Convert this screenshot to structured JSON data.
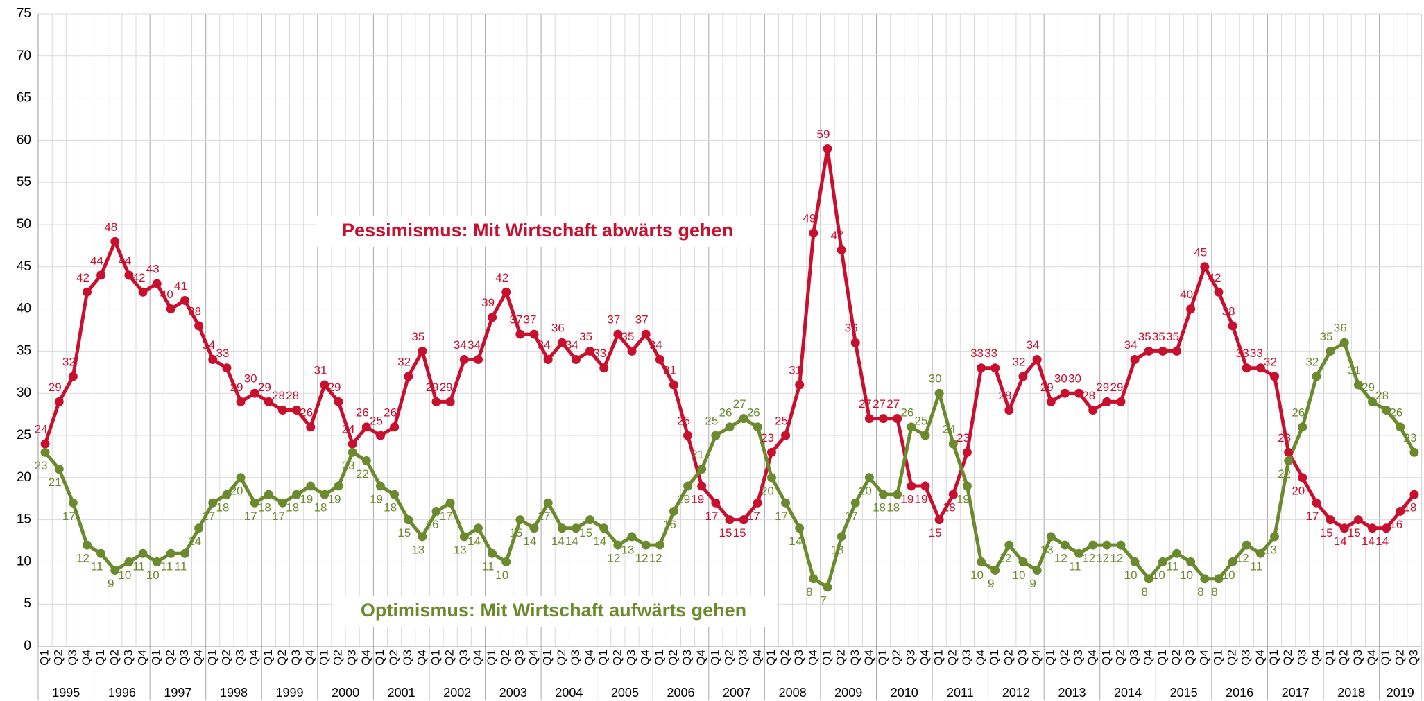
{
  "chart_data": {
    "type": "line",
    "categories": [
      "Q1",
      "Q2",
      "Q3",
      "Q4",
      "Q1",
      "Q2",
      "Q3",
      "Q4",
      "Q1",
      "Q2",
      "Q3",
      "Q4",
      "Q1",
      "Q2",
      "Q3",
      "Q4",
      "Q1",
      "Q2",
      "Q3",
      "Q4",
      "Q1",
      "Q2",
      "Q3",
      "Q4",
      "Q1",
      "Q2",
      "Q3",
      "Q4",
      "Q1",
      "Q2",
      "Q3",
      "Q4",
      "Q1",
      "Q2",
      "Q3",
      "Q4",
      "Q1",
      "Q2",
      "Q3",
      "Q4",
      "Q1",
      "Q2",
      "Q3",
      "Q4",
      "Q1",
      "Q2",
      "Q3",
      "Q4",
      "Q1",
      "Q2",
      "Q3",
      "Q4",
      "Q1",
      "Q2",
      "Q3",
      "Q4",
      "Q1",
      "Q2",
      "Q3",
      "Q4",
      "Q1",
      "Q2",
      "Q3",
      "Q4",
      "Q1",
      "Q2",
      "Q3",
      "Q4",
      "Q1",
      "Q2",
      "Q3",
      "Q4",
      "Q1",
      "Q2",
      "Q3",
      "Q4",
      "Q1",
      "Q2",
      "Q3",
      "Q4",
      "Q1",
      "Q2",
      "Q3",
      "Q4",
      "Q1",
      "Q2",
      "Q3",
      "Q4",
      "Q1",
      "Q2",
      "Q3",
      "Q4",
      "Q1",
      "Q2",
      "Q3",
      "Q4",
      "Q1",
      "Q2",
      "Q3"
    ],
    "years": [
      "1995",
      "1996",
      "1997",
      "1998",
      "1999",
      "2000",
      "2001",
      "2002",
      "2003",
      "2004",
      "2005",
      "2006",
      "2007",
      "2008",
      "2009",
      "2010",
      "2011",
      "2012",
      "2013",
      "2014",
      "2015",
      "2016",
      "2017",
      "2018",
      "2019"
    ],
    "series": [
      {
        "name": "Pessimismus: Mit Wirtschaft abwärts gehen",
        "color": "#c8102e",
        "values": [
          24,
          29,
          32,
          42,
          44,
          48,
          44,
          42,
          43,
          40,
          41,
          38,
          34,
          33,
          29,
          30,
          29,
          28,
          28,
          26,
          31,
          29,
          24,
          26,
          25,
          26,
          32,
          35,
          29,
          29,
          34,
          34,
          39,
          42,
          37,
          37,
          34,
          36,
          34,
          35,
          33,
          37,
          35,
          37,
          34,
          31,
          25,
          19,
          17,
          15,
          15,
          17,
          23,
          25,
          31,
          49,
          59,
          47,
          36,
          27,
          27,
          27,
          19,
          19,
          15,
          18,
          23,
          33,
          33,
          28,
          32,
          34,
          29,
          30,
          30,
          28,
          29,
          29,
          34,
          35,
          35,
          35,
          40,
          45,
          42,
          38,
          33,
          33,
          32,
          23,
          20,
          17,
          15,
          14,
          15,
          14,
          14,
          16,
          18
        ]
      },
      {
        "name": "Optimismus: Mit Wirtschaft aufwärts gehen",
        "color": "#6b8a2e",
        "values": [
          23,
          21,
          17,
          12,
          11,
          9,
          10,
          11,
          10,
          11,
          11,
          14,
          17,
          18,
          20,
          17,
          18,
          17,
          18,
          19,
          18,
          19,
          23,
          22,
          19,
          18,
          15,
          13,
          16,
          17,
          13,
          14,
          11,
          10,
          15,
          14,
          17,
          14,
          14,
          15,
          14,
          12,
          13,
          12,
          12,
          16,
          19,
          21,
          25,
          26,
          27,
          26,
          20,
          17,
          14,
          8,
          7,
          13,
          17,
          20,
          18,
          18,
          26,
          25,
          30,
          24,
          19,
          10,
          9,
          12,
          10,
          9,
          13,
          12,
          11,
          12,
          12,
          12,
          10,
          8,
          10,
          11,
          10,
          8,
          8,
          10,
          12,
          11,
          13,
          22,
          26,
          32,
          35,
          36,
          31,
          29,
          28,
          26,
          23
        ]
      }
    ],
    "ylim": [
      0,
      75
    ],
    "yticks": [
      0,
      5,
      10,
      15,
      20,
      25,
      30,
      35,
      40,
      45,
      50,
      55,
      60,
      65,
      70,
      75
    ],
    "grid": true
  }
}
